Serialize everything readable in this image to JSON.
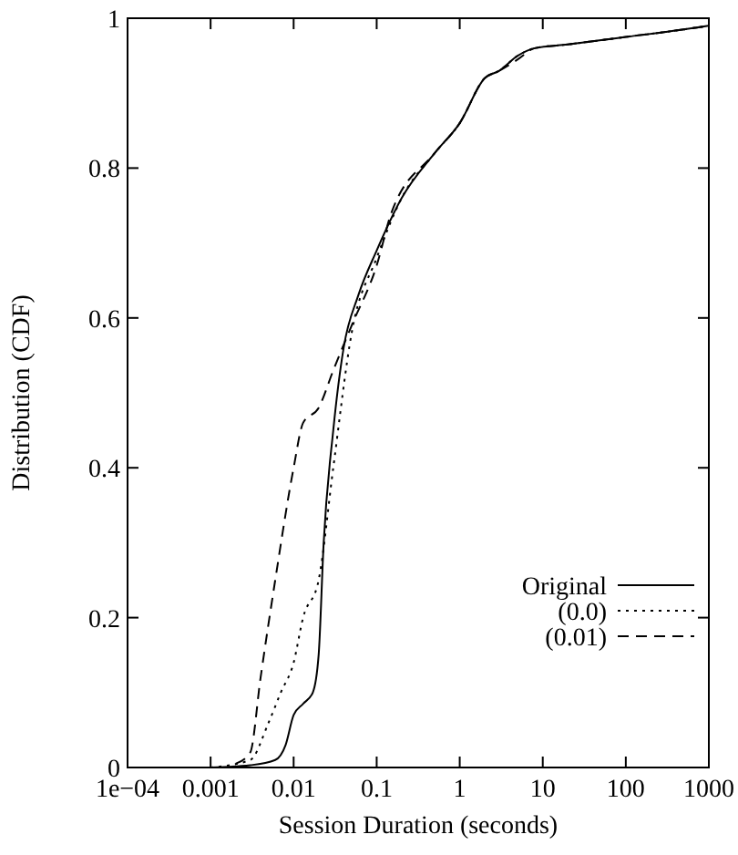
{
  "chart_data": {
    "type": "line",
    "xlabel": "Session Duration (seconds)",
    "ylabel": "Distribution (CDF)",
    "log": "x",
    "xlim": [
      0.0001,
      1000
    ],
    "ylim": [
      0,
      1
    ],
    "xticks": [
      {
        "value": 0.0001,
        "label": "1e−04"
      },
      0.001,
      0.01,
      0.1,
      1,
      10,
      100,
      1000
    ],
    "yticks": [
      0,
      0.2,
      0.4,
      0.6,
      0.8,
      1
    ],
    "grid": false,
    "legend": "bottom right",
    "series": [
      {
        "name": "Original",
        "color": "#000000",
        "line_style": "solid",
        "x": [
          0.001,
          0.003,
          0.006,
          0.008,
          0.01,
          0.013,
          0.017,
          0.02,
          0.023,
          0.03,
          0.04,
          0.06,
          0.1,
          0.2,
          0.5,
          1,
          2,
          3,
          5,
          8,
          20,
          100,
          500,
          1000
        ],
        "values": [
          0,
          0.003,
          0.01,
          0.03,
          0.07,
          0.085,
          0.1,
          0.15,
          0.3,
          0.45,
          0.56,
          0.63,
          0.69,
          0.76,
          0.82,
          0.86,
          0.92,
          0.93,
          0.95,
          0.96,
          0.965,
          0.975,
          0.985,
          0.99
        ]
      },
      {
        "name": "(0.0)",
        "color": "#000000",
        "line_style": "dotted",
        "x": [
          0.001,
          0.003,
          0.005,
          0.007,
          0.01,
          0.013,
          0.02,
          0.03,
          0.05,
          0.1,
          0.2,
          0.5,
          1,
          2,
          3,
          5,
          8,
          20,
          100,
          500,
          1000
        ],
        "values": [
          0,
          0.01,
          0.06,
          0.1,
          0.14,
          0.2,
          0.25,
          0.4,
          0.58,
          0.68,
          0.76,
          0.82,
          0.86,
          0.92,
          0.93,
          0.95,
          0.96,
          0.965,
          0.975,
          0.985,
          0.99
        ]
      },
      {
        "name": "(0.01)",
        "color": "#000000",
        "line_style": "dashed",
        "x": [
          0.002,
          0.003,
          0.004,
          0.006,
          0.01,
          0.013,
          0.02,
          0.03,
          0.05,
          0.1,
          0.15,
          0.5,
          1,
          2,
          3,
          5,
          8,
          20,
          100,
          500,
          1000
        ],
        "values": [
          0.005,
          0.02,
          0.12,
          0.25,
          0.4,
          0.46,
          0.48,
          0.53,
          0.59,
          0.67,
          0.74,
          0.82,
          0.86,
          0.92,
          0.93,
          0.945,
          0.96,
          0.965,
          0.975,
          0.985,
          0.99
        ]
      }
    ]
  }
}
